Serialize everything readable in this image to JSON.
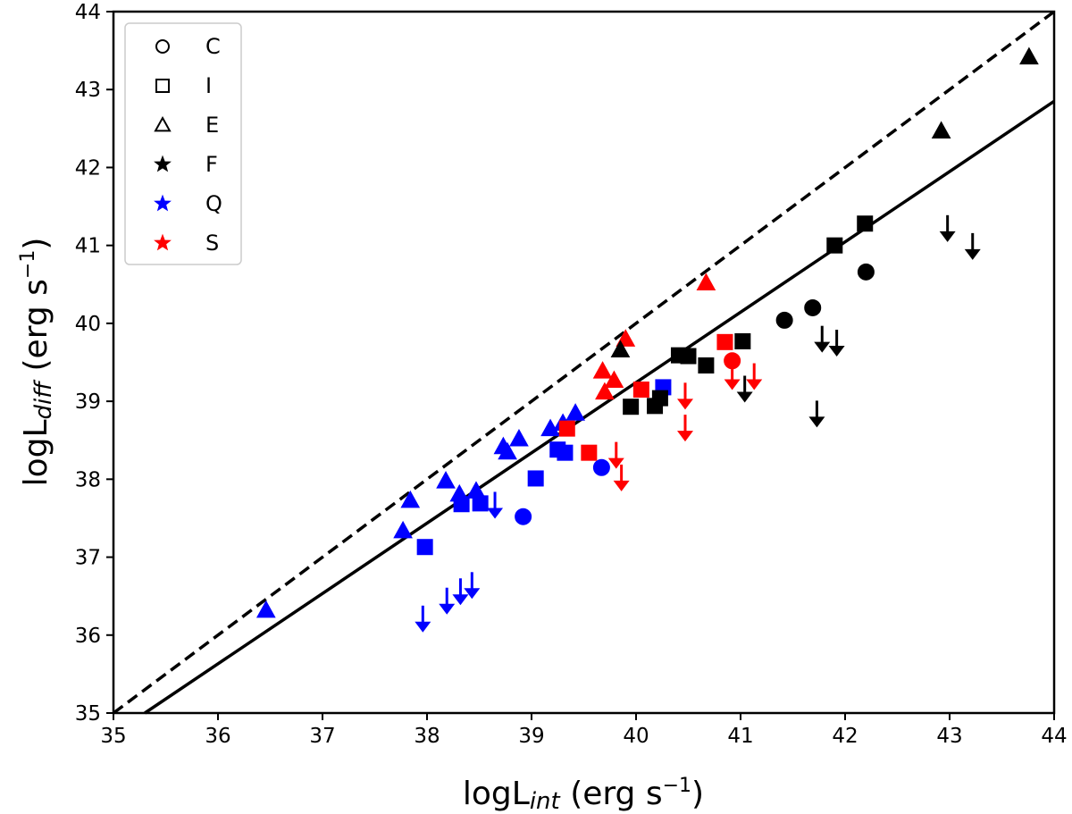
{
  "chart_data": {
    "type": "scatter",
    "xlabel": {
      "main": "logL",
      "sub": "int",
      "unit": "(erg s",
      "sup": "−1",
      "close": ")"
    },
    "ylabel": {
      "main": "logL",
      "sub": "diff",
      "unit": "(erg s",
      "sup": "−1",
      "close": ")"
    },
    "xlim": [
      35,
      44
    ],
    "ylim": [
      35,
      44
    ],
    "xticks": [
      "35",
      "36",
      "37",
      "38",
      "39",
      "40",
      "41",
      "42",
      "43",
      "44"
    ],
    "yticks": [
      "35",
      "36",
      "37",
      "38",
      "39",
      "40",
      "41",
      "42",
      "43",
      "44"
    ],
    "grid": false,
    "legend_position": "top-left",
    "colors": {
      "Q": "#0000ff",
      "S": "#ff0000",
      "F": "#000000"
    },
    "legend": [
      {
        "label": "C",
        "marker": "circle-open",
        "color": "#000000"
      },
      {
        "label": "I",
        "marker": "square-open",
        "color": "#000000"
      },
      {
        "label": "E",
        "marker": "triangle-open",
        "color": "#000000"
      },
      {
        "label": "F",
        "marker": "star",
        "color": "#000000"
      },
      {
        "label": "Q",
        "marker": "star",
        "color": "#0000ff"
      },
      {
        "label": "S",
        "marker": "star",
        "color": "#ff0000"
      }
    ],
    "lines": [
      {
        "style": "dashed",
        "x": [
          35,
          44
        ],
        "y": [
          35,
          44
        ]
      },
      {
        "style": "solid",
        "x": [
          35.3,
          44
        ],
        "y": [
          35,
          42.85
        ]
      }
    ],
    "series": [
      {
        "class": "E",
        "group": "Q",
        "marker": "triangle",
        "points": [
          [
            36.46,
            36.32
          ],
          [
            37.77,
            37.34
          ],
          [
            37.84,
            37.73
          ],
          [
            38.18,
            37.98
          ],
          [
            38.31,
            37.81
          ],
          [
            38.47,
            37.85
          ],
          [
            38.73,
            38.42
          ],
          [
            38.77,
            38.35
          ],
          [
            38.88,
            38.52
          ],
          [
            39.18,
            38.65
          ],
          [
            39.3,
            38.72
          ],
          [
            39.42,
            38.85
          ]
        ]
      },
      {
        "class": "I",
        "group": "Q",
        "marker": "square",
        "points": [
          [
            37.98,
            37.13
          ],
          [
            38.33,
            37.68
          ],
          [
            38.51,
            37.69
          ],
          [
            39.04,
            38.01
          ],
          [
            39.25,
            38.38
          ],
          [
            39.32,
            38.34
          ],
          [
            40.26,
            39.18
          ]
        ]
      },
      {
        "class": "C",
        "group": "Q",
        "marker": "circle",
        "points": [
          [
            38.92,
            37.52
          ],
          [
            39.67,
            38.15
          ]
        ]
      },
      {
        "class": "E",
        "group": "S",
        "marker": "triangle",
        "points": [
          [
            39.68,
            39.39
          ],
          [
            39.7,
            39.12
          ],
          [
            39.79,
            39.27
          ],
          [
            39.9,
            39.8
          ],
          [
            40.67,
            40.52
          ]
        ]
      },
      {
        "class": "I",
        "group": "S",
        "marker": "square",
        "points": [
          [
            39.34,
            38.65
          ],
          [
            39.55,
            38.34
          ],
          [
            40.05,
            39.15
          ],
          [
            40.85,
            39.76
          ]
        ]
      },
      {
        "class": "C",
        "group": "S",
        "marker": "circle",
        "points": [
          [
            40.92,
            39.52
          ]
        ]
      },
      {
        "class": "E",
        "group": "F",
        "marker": "triangle",
        "points": [
          [
            39.85,
            39.66
          ],
          [
            42.92,
            42.47
          ],
          [
            43.76,
            43.42
          ]
        ]
      },
      {
        "class": "I",
        "group": "F",
        "marker": "square",
        "points": [
          [
            39.95,
            38.93
          ],
          [
            40.18,
            38.94
          ],
          [
            40.23,
            39.04
          ],
          [
            40.41,
            39.59
          ],
          [
            40.5,
            39.58
          ],
          [
            40.67,
            39.46
          ],
          [
            41.02,
            39.77
          ],
          [
            41.9,
            41.0
          ],
          [
            42.19,
            41.28
          ]
        ]
      },
      {
        "class": "C",
        "group": "F",
        "marker": "circle",
        "points": [
          [
            41.42,
            40.04
          ],
          [
            41.69,
            40.2
          ],
          [
            42.2,
            40.66
          ]
        ]
      },
      {
        "class": "upper limit",
        "group": "Q",
        "marker": "down-arrow",
        "points": [
          [
            37.96,
            36.08
          ],
          [
            38.19,
            36.31
          ],
          [
            38.32,
            36.43
          ],
          [
            38.43,
            36.51
          ],
          [
            38.65,
            37.54
          ]
        ]
      },
      {
        "class": "upper limit",
        "group": "S",
        "marker": "down-arrow",
        "points": [
          [
            39.81,
            38.18
          ],
          [
            39.86,
            37.89
          ],
          [
            40.47,
            38.94
          ],
          [
            40.47,
            38.53
          ],
          [
            40.92,
            39.19
          ],
          [
            41.13,
            39.19
          ]
        ]
      },
      {
        "class": "upper limit",
        "group": "F",
        "marker": "down-arrow",
        "points": [
          [
            41.04,
            39.03
          ],
          [
            41.73,
            38.71
          ],
          [
            41.78,
            39.67
          ],
          [
            41.92,
            39.62
          ],
          [
            42.98,
            41.09
          ],
          [
            43.22,
            40.86
          ]
        ]
      }
    ]
  }
}
